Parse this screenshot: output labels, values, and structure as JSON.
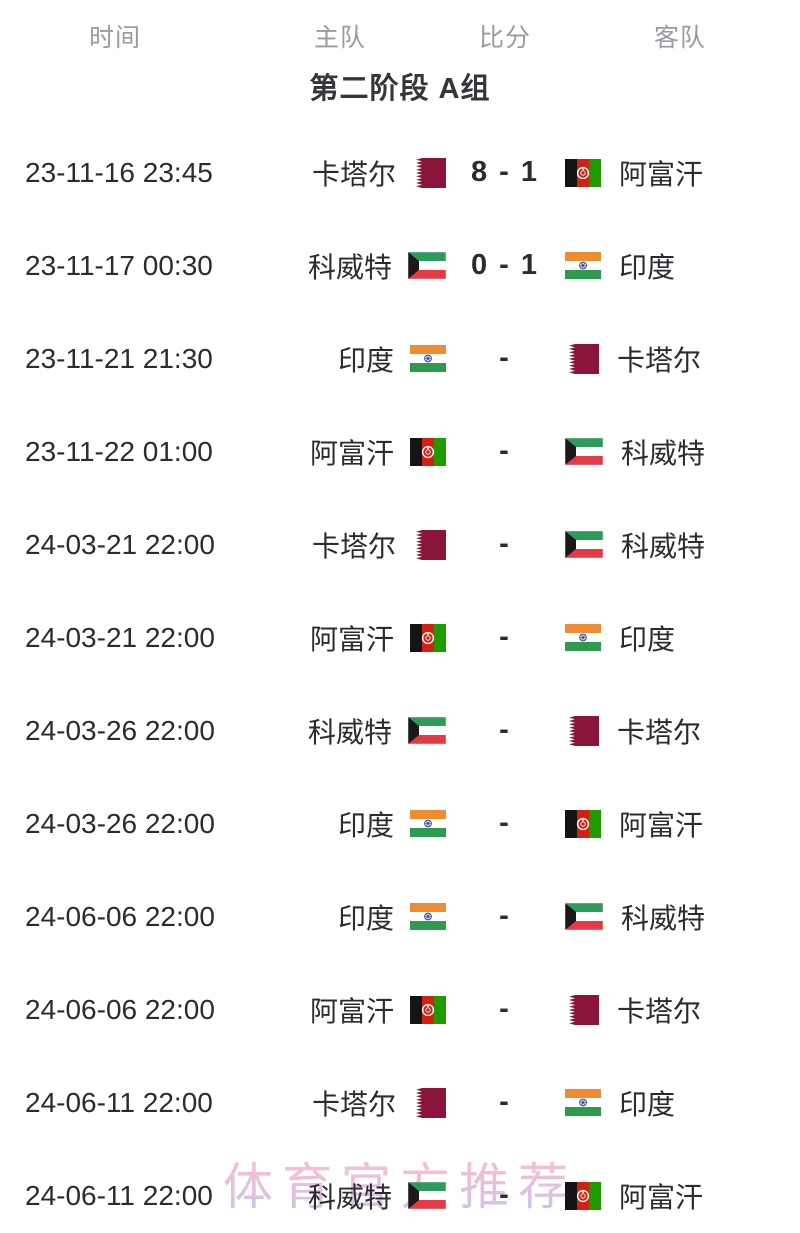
{
  "header": {
    "columns": [
      "时间",
      "主队",
      "比分",
      "客队"
    ]
  },
  "group": {
    "title": "第二阶段 A组"
  },
  "watermark": {
    "text": "体育官方推荐",
    "color_top": "#f3a9c4",
    "color_bottom": "#b9b0e6"
  },
  "colors": {
    "header_text": "#9a9aa0",
    "body_text": "#2b2b30",
    "qatar_maroon": "#8a1538",
    "kuwait_green": "#2f9a5d",
    "kuwait_red": "#e63946",
    "india_saffron": "#ef8b31",
    "india_green": "#2e9a4e",
    "chakra_blue": "#2a3b8f",
    "afghan_red": "#d32011",
    "afghan_green": "#1f9a00"
  },
  "matches": [
    {
      "time": "23-11-16 23:45",
      "home": {
        "name": "卡塔尔",
        "flag": "qatar-flag"
      },
      "score": "8 - 1",
      "away": {
        "name": "阿富汗",
        "flag": "afghanistan-flag"
      }
    },
    {
      "time": "23-11-17 00:30",
      "home": {
        "name": "科威特",
        "flag": "kuwait-flag"
      },
      "score": "0 - 1",
      "away": {
        "name": "印度",
        "flag": "india-flag"
      }
    },
    {
      "time": "23-11-21 21:30",
      "home": {
        "name": "印度",
        "flag": "india-flag"
      },
      "score": "-",
      "away": {
        "name": "卡塔尔",
        "flag": "qatar-flag"
      }
    },
    {
      "time": "23-11-22 01:00",
      "home": {
        "name": "阿富汗",
        "flag": "afghanistan-flag"
      },
      "score": "-",
      "away": {
        "name": "科威特",
        "flag": "kuwait-flag"
      }
    },
    {
      "time": "24-03-21 22:00",
      "home": {
        "name": "卡塔尔",
        "flag": "qatar-flag"
      },
      "score": "-",
      "away": {
        "name": "科威特",
        "flag": "kuwait-flag"
      }
    },
    {
      "time": "24-03-21 22:00",
      "home": {
        "name": "阿富汗",
        "flag": "afghanistan-flag"
      },
      "score": "-",
      "away": {
        "name": "印度",
        "flag": "india-flag"
      }
    },
    {
      "time": "24-03-26 22:00",
      "home": {
        "name": "科威特",
        "flag": "kuwait-flag"
      },
      "score": "-",
      "away": {
        "name": "卡塔尔",
        "flag": "qatar-flag"
      }
    },
    {
      "time": "24-03-26 22:00",
      "home": {
        "name": "印度",
        "flag": "india-flag"
      },
      "score": "-",
      "away": {
        "name": "阿富汗",
        "flag": "afghanistan-flag"
      }
    },
    {
      "time": "24-06-06 22:00",
      "home": {
        "name": "印度",
        "flag": "india-flag"
      },
      "score": "-",
      "away": {
        "name": "科威特",
        "flag": "kuwait-flag"
      }
    },
    {
      "time": "24-06-06 22:00",
      "home": {
        "name": "阿富汗",
        "flag": "afghanistan-flag"
      },
      "score": "-",
      "away": {
        "name": "卡塔尔",
        "flag": "qatar-flag"
      }
    },
    {
      "time": "24-06-11 22:00",
      "home": {
        "name": "卡塔尔",
        "flag": "qatar-flag"
      },
      "score": "-",
      "away": {
        "name": "印度",
        "flag": "india-flag"
      }
    },
    {
      "time": "24-06-11 22:00",
      "home": {
        "name": "科威特",
        "flag": "kuwait-flag"
      },
      "score": "-",
      "away": {
        "name": "阿富汗",
        "flag": "afghanistan-flag"
      }
    }
  ]
}
